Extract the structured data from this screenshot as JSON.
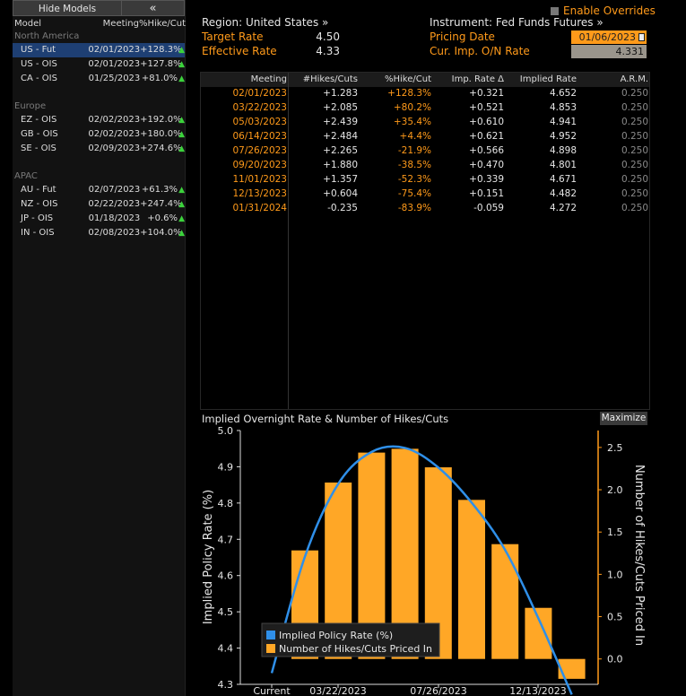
{
  "left_panel": {
    "hide_models_label": "Hide Models",
    "collapse_label": "«",
    "headers": [
      "Model",
      "Meeting",
      "%Hike/Cut"
    ],
    "groups": [
      {
        "name": "North America",
        "rows": [
          {
            "model": "US - Fut",
            "meeting": "02/01/2023",
            "pct": "+128.3%",
            "selected": true
          },
          {
            "model": "US - OIS",
            "meeting": "02/01/2023",
            "pct": "+127.8%"
          },
          {
            "model": "CA - OIS",
            "meeting": "01/25/2023",
            "pct": "+81.0%"
          }
        ]
      },
      {
        "name": "Europe",
        "rows": [
          {
            "model": "EZ - OIS",
            "meeting": "02/02/2023",
            "pct": "+192.0%"
          },
          {
            "model": "GB - OIS",
            "meeting": "02/02/2023",
            "pct": "+180.0%"
          },
          {
            "model": "SE - OIS",
            "meeting": "02/09/2023",
            "pct": "+274.6%"
          }
        ]
      },
      {
        "name": "APAC",
        "rows": [
          {
            "model": "AU - Fut",
            "meeting": "02/07/2023",
            "pct": "+61.3%"
          },
          {
            "model": "NZ - OIS",
            "meeting": "02/22/2023",
            "pct": "+247.4%"
          },
          {
            "model": "JP - OIS",
            "meeting": "01/18/2023",
            "pct": "+0.6%"
          },
          {
            "model": "IN - OIS",
            "meeting": "02/08/2023",
            "pct": "+104.0%"
          }
        ]
      }
    ]
  },
  "header": {
    "region_label": "Region: United States »",
    "target_rate_label": "Target Rate",
    "target_rate_value": "4.50",
    "effective_rate_label": "Effective Rate",
    "effective_rate_value": "4.33",
    "instrument_label": "Instrument: Fed Funds Futures »",
    "pricing_date_label": "Pricing Date",
    "pricing_date_value": "01/06/2023",
    "cur_imp_label": "Cur. Imp. O/N Rate",
    "cur_imp_value": "4.331",
    "enable_overrides_label": "Enable Overrides"
  },
  "table": {
    "columns": [
      "Meeting",
      "#Hikes/Cuts",
      "%Hike/Cut",
      "Imp. Rate Δ",
      "Implied Rate",
      "A.R.M."
    ],
    "rows": [
      [
        "02/01/2023",
        "+1.283",
        "+128.3%",
        "+0.321",
        "4.652",
        "0.250"
      ],
      [
        "03/22/2023",
        "+2.085",
        "+80.2%",
        "+0.521",
        "4.853",
        "0.250"
      ],
      [
        "05/03/2023",
        "+2.439",
        "+35.4%",
        "+0.610",
        "4.941",
        "0.250"
      ],
      [
        "06/14/2023",
        "+2.484",
        "+4.4%",
        "+0.621",
        "4.952",
        "0.250"
      ],
      [
        "07/26/2023",
        "+2.265",
        "-21.9%",
        "+0.566",
        "4.898",
        "0.250"
      ],
      [
        "09/20/2023",
        "+1.880",
        "-38.5%",
        "+0.470",
        "4.801",
        "0.250"
      ],
      [
        "11/01/2023",
        "+1.357",
        "-52.3%",
        "+0.339",
        "4.671",
        "0.250"
      ],
      [
        "12/13/2023",
        "+0.604",
        "-75.4%",
        "+0.151",
        "4.482",
        "0.250"
      ],
      [
        "01/31/2024",
        "-0.235",
        "-83.9%",
        "-0.059",
        "4.272",
        "0.250"
      ]
    ]
  },
  "chart": {
    "title": "Implied Overnight Rate & Number of Hikes/Cuts",
    "maximize_label": "Maximize",
    "colors": {
      "bar": "#ffa726",
      "line": "#2f8fe8",
      "accent": "#ff9a1a"
    }
  },
  "chart_data": {
    "type": "bar",
    "title": "Implied Overnight Rate & Number of Hikes/Cuts",
    "x_ticks": [
      "Current",
      "03/22/2023",
      "07/26/2023",
      "12/13/2023"
    ],
    "ylabel_left": "Implied Policy Rate (%)",
    "ylabel_right": "Number of Hikes/Cuts Priced In",
    "ylim_left": [
      4.3,
      5.0
    ],
    "yticks_left": [
      4.3,
      4.4,
      4.5,
      4.6,
      4.7,
      4.8,
      4.9,
      5.0
    ],
    "ylim_right": [
      -0.3,
      2.7
    ],
    "yticks_right": [
      0.0,
      0.5,
      1.0,
      1.5,
      2.0,
      2.5
    ],
    "categories": [
      "02/01/2023",
      "03/22/2023",
      "05/03/2023",
      "06/14/2023",
      "07/26/2023",
      "09/20/2023",
      "11/01/2023",
      "12/13/2023",
      "01/31/2024"
    ],
    "series": [
      {
        "name": "Number of Hikes/Cuts Priced In",
        "type": "bar",
        "axis": "right",
        "values": [
          1.283,
          2.085,
          2.439,
          2.484,
          2.265,
          1.88,
          1.357,
          0.604,
          -0.235
        ]
      },
      {
        "name": "Implied Policy Rate (%)",
        "type": "line",
        "axis": "left",
        "x": [
          "Current",
          "02/01/2023",
          "03/22/2023",
          "05/03/2023",
          "06/14/2023",
          "07/26/2023",
          "09/20/2023",
          "11/01/2023",
          "12/13/2023",
          "01/31/2024"
        ],
        "values": [
          4.331,
          4.652,
          4.853,
          4.941,
          4.952,
          4.898,
          4.801,
          4.671,
          4.482,
          4.272
        ]
      }
    ],
    "legend": {
      "placement": "bottom-left",
      "entries": [
        "Implied Policy Rate (%)",
        "Number of Hikes/Cuts Priced In"
      ]
    }
  }
}
